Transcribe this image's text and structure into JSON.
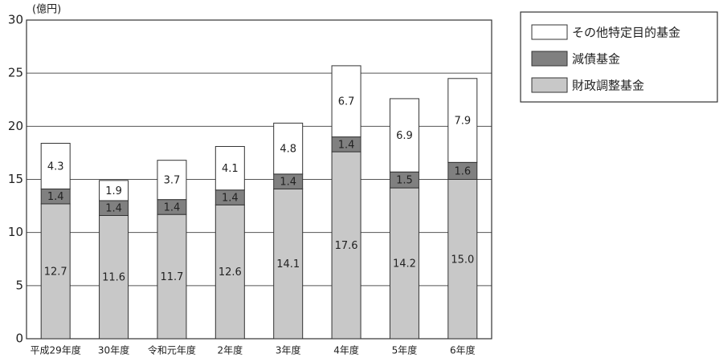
{
  "chart_data": {
    "type": "stacked-bar",
    "y_label": "(億円)",
    "categories": [
      "平成29年度",
      "30年度",
      "令和元年度",
      "2年度",
      "3年度",
      "4年度",
      "5年度",
      "6年度"
    ],
    "series": [
      {
        "name": "財政調整基金",
        "color": "#c8c8c8",
        "values": [
          12.7,
          11.6,
          11.7,
          12.6,
          14.1,
          17.6,
          14.2,
          15.0
        ],
        "value_labels": [
          "12.7",
          "11.6",
          "11.7",
          "12.6",
          "14.1",
          "17.6",
          "14.2",
          "15.0"
        ]
      },
      {
        "name": "減債基金",
        "color": "#808080",
        "values": [
          1.4,
          1.4,
          1.4,
          1.4,
          1.4,
          1.4,
          1.5,
          1.6
        ]
      },
      {
        "name": "その他特定目的基金",
        "color": "#ffffff",
        "values": [
          4.3,
          1.9,
          3.7,
          4.1,
          4.8,
          6.7,
          6.9,
          7.9
        ]
      }
    ],
    "ylim": [
      0,
      30
    ],
    "yticks": [
      0,
      5,
      10,
      15,
      20,
      25,
      30
    ],
    "grid": true,
    "legend": "top-right"
  }
}
